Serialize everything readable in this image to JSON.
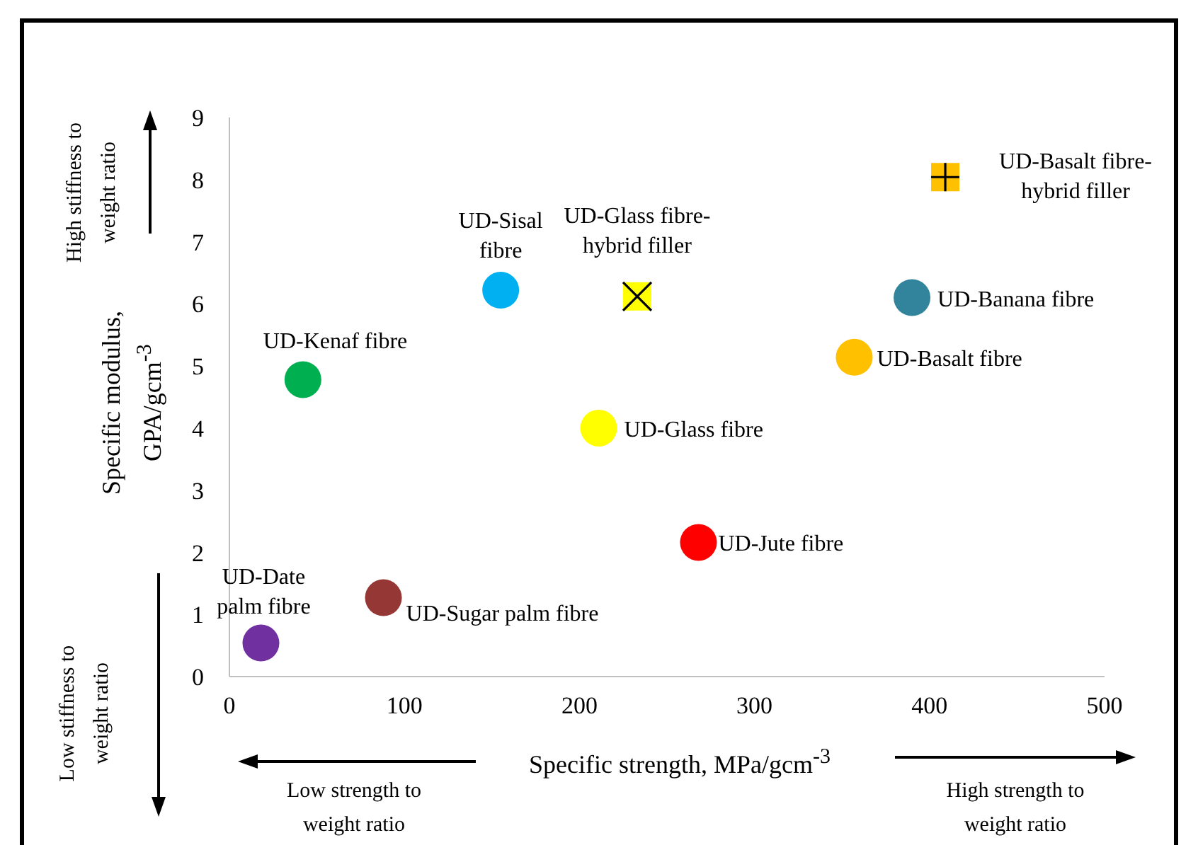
{
  "chart_data": {
    "type": "scatter",
    "xlabel": "Specific strength, MPa/gcm$^{-3}$",
    "ylabel": "Specific modulus, GPA/gcm$^{-3}$",
    "xlim": [
      0,
      500
    ],
    "xticks": [
      0,
      100,
      200,
      300,
      400,
      500
    ],
    "ylim": [
      0,
      9
    ],
    "yticks": [
      0,
      1,
      2,
      3,
      4,
      5,
      6,
      7,
      8,
      9
    ],
    "grid": false,
    "legend": false,
    "annotations": [
      "High stiffness to weight ratio",
      "Low stiffness to weight ratio",
      "Low strength to weight ratio",
      "High strength to weight ratio"
    ],
    "series": [
      {
        "name": "UD-Date palm fibre",
        "color": "#7030a0",
        "marker": "circle",
        "x": [
          18
        ],
        "values": [
          0.54
        ]
      },
      {
        "name": "UD-Sugar palm fibre",
        "color": "#953735",
        "marker": "circle",
        "x": [
          88
        ],
        "values": [
          1.27
        ]
      },
      {
        "name": "UD-Kenaf fibre",
        "color": "#00b050",
        "marker": "circle",
        "x": [
          42
        ],
        "values": [
          4.78
        ]
      },
      {
        "name": "UD-Sisal fibre",
        "color": "#00b0f0",
        "marker": "circle",
        "x": [
          155
        ],
        "values": [
          6.22
        ]
      },
      {
        "name": "UD-Glass fibre",
        "color": "#ffff00",
        "marker": "circle",
        "x": [
          211
        ],
        "values": [
          4.0
        ]
      },
      {
        "name": "UD-Glass fibre-hybrid filler",
        "color": "#ffff00",
        "marker": "square",
        "x": [
          233
        ],
        "values": [
          6.12
        ]
      },
      {
        "name": "UD-Jute fibre",
        "color": "#ff0000",
        "marker": "circle",
        "x": [
          268
        ],
        "values": [
          2.16
        ]
      },
      {
        "name": "UD-Basalt fibre",
        "color": "#ffc000",
        "marker": "circle",
        "x": [
          357
        ],
        "values": [
          5.14
        ]
      },
      {
        "name": "UD-Banana fibre",
        "color": "#31849b",
        "marker": "circle",
        "x": [
          390
        ],
        "values": [
          6.1
        ]
      },
      {
        "name": "UD-Basalt fibre-hybrid filler",
        "color": "#ffc000",
        "marker": "square",
        "x": [
          409
        ],
        "values": [
          8.04
        ]
      }
    ]
  }
}
